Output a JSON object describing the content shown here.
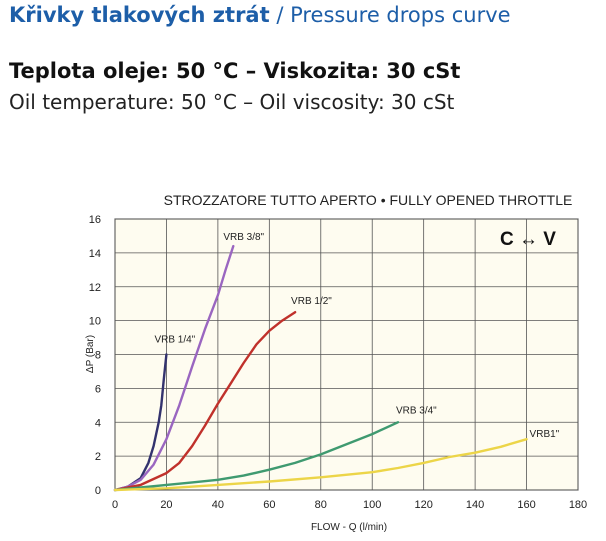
{
  "header": {
    "title_cz": "Křivky tlakových ztrát",
    "title_sep": " / ",
    "title_en": "Pressure drops curve",
    "subtitle_cz": "Teplota oleje: 50 °C – Viskozita: 30 cSt",
    "subtitle_en": "Oil temperature: 50 °C – Oil viscosity: 30 cSt"
  },
  "chart_data": {
    "type": "line",
    "title": "STROZZATORE TUTTO APERTO • FULLY OPENED THROTTLE",
    "xlabel": "FLOW - Q (l/min)",
    "ylabel": "ΔP (Bar)",
    "xlim": [
      0,
      180
    ],
    "ylim": [
      0,
      16
    ],
    "xticks": [
      0,
      20,
      40,
      60,
      80,
      100,
      120,
      140,
      160,
      180
    ],
    "yticks": [
      0,
      2,
      4,
      6,
      8,
      10,
      12,
      14,
      16
    ],
    "grid": true,
    "annotation": "C ↔ V",
    "series": [
      {
        "name": "VRB 1/4\"",
        "color": "#33336e",
        "points": [
          [
            0,
            0
          ],
          [
            5,
            0.2
          ],
          [
            10,
            0.7
          ],
          [
            13,
            1.6
          ],
          [
            15,
            2.6
          ],
          [
            17,
            4.0
          ],
          [
            18,
            5.0
          ],
          [
            19,
            6.6
          ],
          [
            20,
            8
          ]
        ]
      },
      {
        "name": "VRB 3/8\"",
        "color": "#9a66c0",
        "points": [
          [
            0,
            0
          ],
          [
            5,
            0.2
          ],
          [
            10,
            0.6
          ],
          [
            15,
            1.5
          ],
          [
            20,
            3.0
          ],
          [
            25,
            5.0
          ],
          [
            30,
            7.3
          ],
          [
            35,
            9.5
          ],
          [
            40,
            11.5
          ],
          [
            43,
            13.0
          ],
          [
            46,
            14.4
          ]
        ]
      },
      {
        "name": "VRB 1/2\"",
        "color": "#c0312b",
        "points": [
          [
            0,
            0
          ],
          [
            10,
            0.3
          ],
          [
            20,
            1.0
          ],
          [
            25,
            1.6
          ],
          [
            30,
            2.6
          ],
          [
            35,
            3.8
          ],
          [
            40,
            5.1
          ],
          [
            45,
            6.3
          ],
          [
            50,
            7.5
          ],
          [
            55,
            8.6
          ],
          [
            60,
            9.4
          ],
          [
            65,
            10.0
          ],
          [
            70,
            10.5
          ]
        ]
      },
      {
        "name": "VRB 3/4\"",
        "color": "#3f9a70",
        "points": [
          [
            0,
            0
          ],
          [
            10,
            0.15
          ],
          [
            20,
            0.3
          ],
          [
            30,
            0.45
          ],
          [
            40,
            0.6
          ],
          [
            50,
            0.85
          ],
          [
            60,
            1.2
          ],
          [
            70,
            1.6
          ],
          [
            80,
            2.1
          ],
          [
            90,
            2.7
          ],
          [
            100,
            3.3
          ],
          [
            110,
            4.0
          ]
        ]
      },
      {
        "name": "VRB1\"",
        "color": "#ecd548",
        "points": [
          [
            0,
            0
          ],
          [
            20,
            0.1
          ],
          [
            40,
            0.3
          ],
          [
            60,
            0.5
          ],
          [
            80,
            0.75
          ],
          [
            100,
            1.05
          ],
          [
            110,
            1.3
          ],
          [
            120,
            1.6
          ],
          [
            130,
            1.95
          ],
          [
            140,
            2.2
          ],
          [
            150,
            2.55
          ],
          [
            160,
            3.0
          ]
        ]
      }
    ]
  }
}
